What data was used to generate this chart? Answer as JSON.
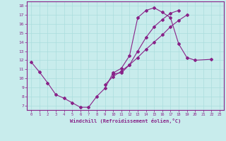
{
  "xlabel": "Windchill (Refroidissement éolien,°C)",
  "bg_color": "#c8ecec",
  "line_color": "#882288",
  "grid_color": "#aadddd",
  "xlim": [
    -0.5,
    23.5
  ],
  "ylim": [
    6.5,
    18.5
  ],
  "xticks": [
    0,
    1,
    2,
    3,
    4,
    5,
    6,
    7,
    8,
    9,
    10,
    11,
    12,
    13,
    14,
    15,
    16,
    17,
    18,
    19,
    20,
    21,
    22,
    23
  ],
  "yticks": [
    7,
    8,
    9,
    10,
    11,
    12,
    13,
    14,
    15,
    16,
    17,
    18
  ],
  "series": [
    {
      "x": [
        0,
        1,
        2,
        3,
        4,
        5,
        6,
        7,
        8,
        9,
        10,
        11,
        12,
        13,
        14,
        15,
        16,
        17,
        18,
        19,
        20,
        22
      ],
      "y": [
        11.8,
        10.7,
        9.5,
        8.2,
        7.8,
        7.3,
        6.8,
        6.8,
        8.0,
        8.9,
        10.6,
        11.1,
        12.5,
        16.7,
        17.5,
        17.8,
        17.3,
        16.7,
        13.8,
        12.3,
        12.0,
        12.1
      ]
    },
    {
      "x": [
        10,
        11,
        12,
        13,
        14,
        15,
        16,
        17,
        18
      ],
      "y": [
        10.5,
        10.6,
        11.5,
        13.0,
        14.5,
        15.7,
        16.5,
        17.2,
        17.5
      ]
    },
    {
      "x": [
        9,
        10,
        11,
        12,
        13,
        14,
        15,
        16,
        17,
        18,
        19
      ],
      "y": [
        9.3,
        10.2,
        10.8,
        11.5,
        12.3,
        13.2,
        14.0,
        14.8,
        15.7,
        16.4,
        17.0
      ]
    }
  ]
}
